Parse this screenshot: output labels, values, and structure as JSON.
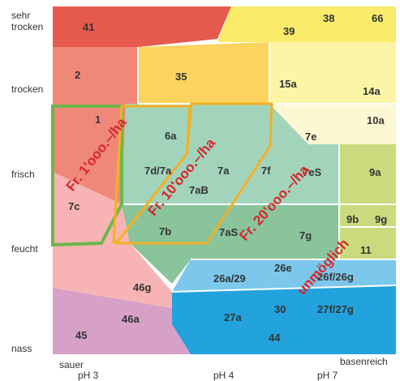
{
  "y_axis": {
    "sehr_trocken": [
      "sehr",
      "trocken"
    ],
    "trocken": "trocken",
    "frisch": "frisch",
    "feucht": "feucht",
    "nass": "nass"
  },
  "x_axis": {
    "sauer": "sauer",
    "basenreich": "basenreich",
    "ph3": "pH 3",
    "ph4": "pH 4",
    "ph7": "pH 7"
  },
  "units": {
    "u41": "41",
    "u39": "39",
    "u38": "38",
    "u66": "66",
    "u2": "2",
    "u35": "35",
    "u15a": "15a",
    "u14a": "14a",
    "u1": "1",
    "u10a": "10a",
    "u6a": "6a",
    "u7e": "7e",
    "u7d7a": "7d/7a",
    "u7a": "7a",
    "u7f": "7f",
    "u7eS": "7eS",
    "u9a": "9a",
    "u7aB": "7aB",
    "u7c": "7c",
    "u9b": "9b",
    "u9g": "9g",
    "u7b": "7b",
    "u7aS": "7aS",
    "u7g": "7g",
    "u11": "11",
    "u26e": "26e",
    "u26a29": "26a/29",
    "u26f26g": "26f/26g",
    "u46g": "46g",
    "u30": "30",
    "u27f27g": "27f/27g",
    "u46a": "46a",
    "u27a": "27a",
    "u45": "45",
    "u44": "44"
  },
  "annotations": {
    "cost_1000": "Fr. 1'ooo.–/ha",
    "cost_10000": "Fr. 10'ooo.–/ha",
    "cost_20000": "Fr. 20'ooo.–/ha",
    "impossible": "unmöglich"
  },
  "colors": {
    "red": "#e65a4e",
    "salmon": "#f0887a",
    "pink": "#f8b4b4",
    "mauve": "#d7a0c6",
    "yellow": "#faeb6a",
    "orange_yellow": "#fbd35e",
    "pale_yellow": "#fcf5a6",
    "cream": "#fdf8d4",
    "mint": "#a2d4bb",
    "green": "#8ac49b",
    "lime": "#c9db7d",
    "light_blue": "#7cc8ec",
    "blue": "#22a3de",
    "outline_green": "#6db64a",
    "outline_orange": "#f3b026",
    "annotation_red": "#d8262a"
  }
}
